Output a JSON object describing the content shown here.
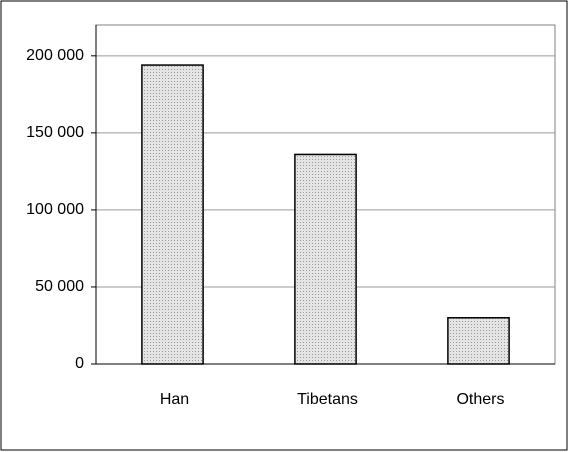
{
  "chart_data": {
    "type": "bar",
    "categories": [
      "Han",
      "Tibetans",
      "Others"
    ],
    "values": [
      194000,
      136000,
      30000
    ],
    "color": "#d6d6d6",
    "ylim": [
      0,
      220000
    ],
    "yticks": [
      0,
      {
        "value": 50000,
        "label": "50 000"
      },
      {
        "value": 100000,
        "label": "100 000"
      },
      {
        "value": 150000,
        "label": "150 000"
      },
      {
        "value": 200000,
        "label": "200 000"
      }
    ],
    "grid": true
  }
}
